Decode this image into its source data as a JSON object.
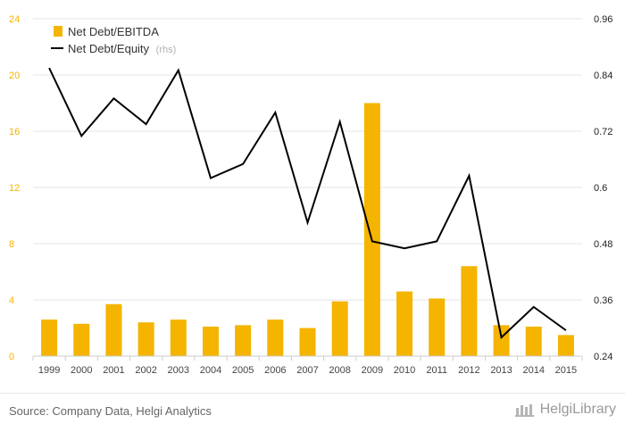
{
  "chart_data": {
    "type": "bar+line",
    "categories": [
      "1999",
      "2000",
      "2001",
      "2002",
      "2003",
      "2004",
      "2005",
      "2006",
      "2007",
      "2008",
      "2009",
      "2010",
      "2011",
      "2012",
      "2013",
      "2014",
      "2015"
    ],
    "series": [
      {
        "name": "Net Debt/EBITDA",
        "type": "bar",
        "axis": "left",
        "color": "#f5b400",
        "values": [
          2.6,
          2.3,
          3.7,
          2.4,
          2.6,
          2.1,
          2.2,
          2.6,
          2.0,
          3.9,
          18.0,
          4.6,
          4.1,
          6.4,
          2.2,
          2.1,
          1.5
        ]
      },
      {
        "name": "Net Debt/Equity",
        "name_suffix": "(rhs)",
        "type": "line",
        "axis": "right",
        "color": "#000000",
        "values": [
          0.855,
          0.71,
          0.79,
          0.735,
          0.85,
          0.62,
          0.65,
          0.76,
          0.525,
          0.74,
          0.485,
          0.47,
          0.485,
          0.625,
          0.28,
          0.345,
          0.295
        ]
      }
    ],
    "y_left": {
      "min": 0,
      "max": 24,
      "ticks": [
        "0",
        "4",
        "8",
        "12",
        "16",
        "20",
        "24"
      ]
    },
    "y_right": {
      "min": 0.24,
      "max": 0.96,
      "ticks": [
        "0.24",
        "0.36",
        "0.48",
        "0.6",
        "0.72",
        "0.84",
        "0.96"
      ]
    },
    "grid": true,
    "legend_position": "top-left",
    "colors": {
      "axis_left": "#f5b400",
      "grid": "#e5e5e5",
      "suffix": "#b0b0b0"
    }
  },
  "footer": {
    "source": "Source: Company Data, Helgi Analytics",
    "brand": "HelgiLibrary"
  }
}
